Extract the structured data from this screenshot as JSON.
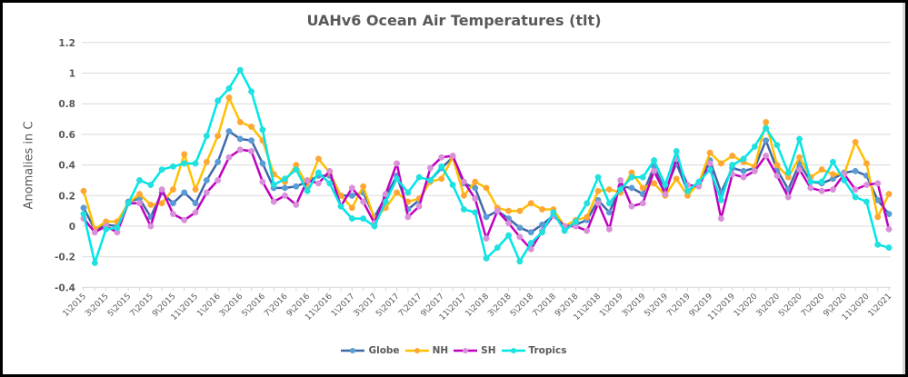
{
  "chart_data": {
    "type": "line",
    "title": "UAHv6 Ocean Air Temperatures (tlt)",
    "xlabel": "",
    "ylabel": "Anomalies in C",
    "ylim": [
      -0.4,
      1.2
    ],
    "yticks": [
      "1.2",
      "1",
      "0.8",
      "0.6",
      "0.4",
      "0.2",
      "0",
      "-0.2",
      "-0.4"
    ],
    "ytick_values": [
      1.2,
      1.0,
      0.8,
      0.6,
      0.4,
      0.2,
      0,
      -0.2,
      -0.4
    ],
    "grid": true,
    "legend_position": "bottom",
    "x": [
      "1\\2015",
      "2\\2015",
      "3\\2015",
      "4\\2015",
      "5\\2015",
      "6\\2015",
      "7\\2015",
      "8\\2015",
      "9\\2015",
      "10\\2015",
      "11\\2015",
      "12\\2015",
      "1\\2016",
      "2\\2016",
      "3\\2016",
      "4\\2016",
      "5\\2016",
      "6\\2016",
      "7\\2016",
      "8\\2016",
      "9\\2016",
      "10\\2016",
      "11\\2016",
      "12\\2016",
      "1\\2017",
      "2\\2017",
      "3\\2017",
      "4\\2017",
      "5\\2017",
      "6\\2017",
      "7\\2017",
      "8\\2017",
      "9\\2017",
      "10\\2017",
      "11\\2017",
      "12\\2017",
      "1\\2018",
      "2\\2018",
      "3\\2018",
      "4\\2018",
      "5\\2018",
      "6\\2018",
      "7\\2018",
      "8\\2018",
      "9\\2018",
      "10\\2018",
      "11\\2018",
      "12\\2018",
      "1\\2019",
      "2\\2019",
      "3\\2019",
      "4\\2019",
      "5\\2019",
      "6\\2019",
      "7\\2019",
      "8\\2019",
      "9\\2019",
      "10\\2019",
      "11\\2019",
      "12\\2019",
      "1\\2020",
      "2\\2020",
      "3\\2020",
      "4\\2020",
      "5\\2020",
      "6\\2020",
      "7\\2020",
      "8\\2020",
      "9\\2020",
      "10\\2020",
      "11\\2020",
      "12\\2020",
      "1\\2021"
    ],
    "tick_labels": [
      "1\\2015",
      "3\\2015",
      "5\\2015",
      "7\\2015",
      "9\\2015",
      "11\\2015",
      "1\\2016",
      "3\\2016",
      "5\\2016",
      "7\\2016",
      "9\\2016",
      "11\\2016",
      "1\\2017",
      "3\\2017",
      "5\\2017",
      "7\\2017",
      "9\\2017",
      "11\\2017",
      "1\\2018",
      "3\\2018",
      "5\\2018",
      "7\\2018",
      "9\\2018",
      "11\\2018",
      "1\\2019",
      "3\\2019",
      "5\\2019",
      "7\\2019",
      "9\\2019",
      "11\\2019",
      "1\\2020",
      "3\\2020",
      "5\\2020",
      "7\\2020",
      "9\\2020",
      "11\\2020",
      "1\\2021"
    ],
    "series": [
      {
        "name": "Globe",
        "color": "#3f67a8",
        "marker": "#5b9bd5",
        "values": [
          0.12,
          -0.02,
          0.01,
          0.0,
          0.16,
          0.18,
          0.06,
          0.22,
          0.15,
          0.22,
          0.15,
          0.3,
          0.42,
          0.62,
          0.57,
          0.56,
          0.41,
          0.25,
          0.25,
          0.26,
          0.29,
          0.33,
          0.33,
          0.2,
          0.2,
          0.22,
          0.06,
          0.19,
          0.33,
          0.11,
          0.17,
          0.3,
          0.38,
          0.45,
          0.28,
          0.25,
          0.06,
          0.1,
          0.05,
          -0.01,
          -0.04,
          0.01,
          0.07,
          0.0,
          0.01,
          0.04,
          0.17,
          0.09,
          0.26,
          0.25,
          0.21,
          0.39,
          0.23,
          0.41,
          0.23,
          0.27,
          0.43,
          0.22,
          0.38,
          0.36,
          0.38,
          0.56,
          0.37,
          0.24,
          0.41,
          0.29,
          0.28,
          0.31,
          0.35,
          0.36,
          0.33,
          0.17,
          0.08
        ]
      },
      {
        "name": "NH",
        "color": "#ffc000",
        "marker": "#ffa733",
        "values": [
          0.23,
          -0.02,
          0.03,
          0.03,
          0.15,
          0.21,
          0.14,
          0.15,
          0.24,
          0.47,
          0.24,
          0.42,
          0.59,
          0.84,
          0.68,
          0.65,
          0.56,
          0.34,
          0.29,
          0.4,
          0.26,
          0.44,
          0.35,
          0.2,
          0.12,
          0.26,
          0.05,
          0.12,
          0.22,
          0.16,
          0.18,
          0.29,
          0.31,
          0.45,
          0.2,
          0.29,
          0.25,
          0.12,
          0.1,
          0.1,
          0.15,
          0.11,
          0.11,
          0.0,
          0.04,
          0.06,
          0.23,
          0.24,
          0.22,
          0.35,
          0.25,
          0.28,
          0.2,
          0.31,
          0.2,
          0.28,
          0.48,
          0.41,
          0.46,
          0.42,
          0.39,
          0.68,
          0.4,
          0.32,
          0.45,
          0.32,
          0.37,
          0.34,
          0.34,
          0.55,
          0.41,
          0.06,
          0.21
        ]
      },
      {
        "name": "SH",
        "color": "#c000c0",
        "marker": "#d98fd9",
        "values": [
          0.05,
          -0.04,
          0.0,
          -0.04,
          0.15,
          0.15,
          0.0,
          0.24,
          0.08,
          0.04,
          0.09,
          0.22,
          0.3,
          0.45,
          0.5,
          0.49,
          0.29,
          0.16,
          0.2,
          0.14,
          0.3,
          0.28,
          0.36,
          0.13,
          0.25,
          0.16,
          0.02,
          0.21,
          0.41,
          0.06,
          0.13,
          0.38,
          0.45,
          0.46,
          0.29,
          0.18,
          -0.08,
          0.1,
          0.02,
          -0.07,
          -0.15,
          -0.03,
          0.07,
          0.0,
          0.0,
          -0.03,
          0.15,
          -0.02,
          0.3,
          0.13,
          0.15,
          0.36,
          0.21,
          0.44,
          0.27,
          0.26,
          0.41,
          0.05,
          0.34,
          0.32,
          0.36,
          0.46,
          0.33,
          0.19,
          0.37,
          0.25,
          0.23,
          0.24,
          0.34,
          0.24,
          0.27,
          0.28,
          -0.02
        ]
      },
      {
        "name": "Tropics",
        "color": "#00e6e6",
        "marker": "#20e0e0",
        "values": [
          0.08,
          -0.24,
          -0.02,
          -0.01,
          0.15,
          0.3,
          0.27,
          0.37,
          0.39,
          0.41,
          0.41,
          0.59,
          0.82,
          0.9,
          1.02,
          0.88,
          0.63,
          0.27,
          0.31,
          0.37,
          0.23,
          0.35,
          0.28,
          0.13,
          0.05,
          0.05,
          0.0,
          0.16,
          0.31,
          0.22,
          0.32,
          0.3,
          0.39,
          0.27,
          0.11,
          0.09,
          -0.21,
          -0.14,
          -0.06,
          -0.23,
          -0.11,
          -0.04,
          0.09,
          -0.03,
          0.03,
          0.15,
          0.32,
          0.15,
          0.24,
          0.32,
          0.32,
          0.43,
          0.27,
          0.49,
          0.23,
          0.29,
          0.37,
          0.17,
          0.4,
          0.44,
          0.52,
          0.64,
          0.53,
          0.35,
          0.57,
          0.29,
          0.29,
          0.42,
          0.3,
          0.19,
          0.16,
          -0.12,
          -0.14
        ]
      }
    ]
  }
}
